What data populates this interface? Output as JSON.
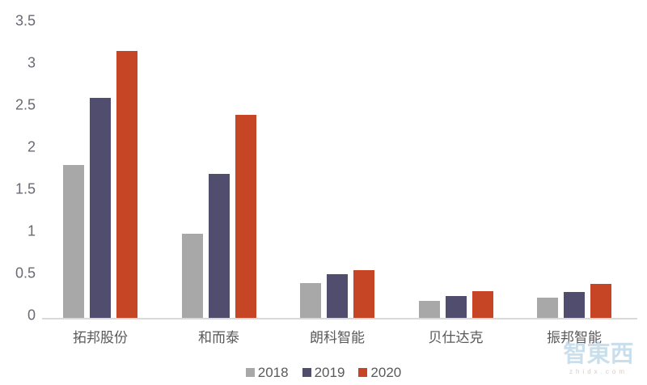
{
  "chart_data": {
    "type": "bar",
    "title": "",
    "xlabel": "",
    "ylabel": "",
    "categories": [
      "拓邦股份",
      "和而泰",
      "朗科智能",
      "贝仕达克",
      "振邦智能"
    ],
    "series": [
      {
        "name": "2018",
        "color": "#a8a8a8",
        "values": [
          1.82,
          1.0,
          0.41,
          0.2,
          0.24
        ]
      },
      {
        "name": "2019",
        "color": "#514d6e",
        "values": [
          2.62,
          1.71,
          0.52,
          0.26,
          0.31
        ]
      },
      {
        "name": "2020",
        "color": "#c64524",
        "values": [
          3.17,
          2.41,
          0.57,
          0.32,
          0.4
        ]
      }
    ],
    "ylim": [
      0,
      3.5
    ],
    "ytick_labels": [
      "0",
      "0.5",
      "1",
      "1.5",
      "2",
      "2.5",
      "3",
      "3.5"
    ],
    "grid": false,
    "legend_position": "bottom",
    "axis_line_color": "#d9d9d9",
    "ytick_color": "#6a6a74",
    "category_label_color": "#595959"
  },
  "watermark": {
    "brand": "智東西",
    "site": "zhidx.com"
  }
}
